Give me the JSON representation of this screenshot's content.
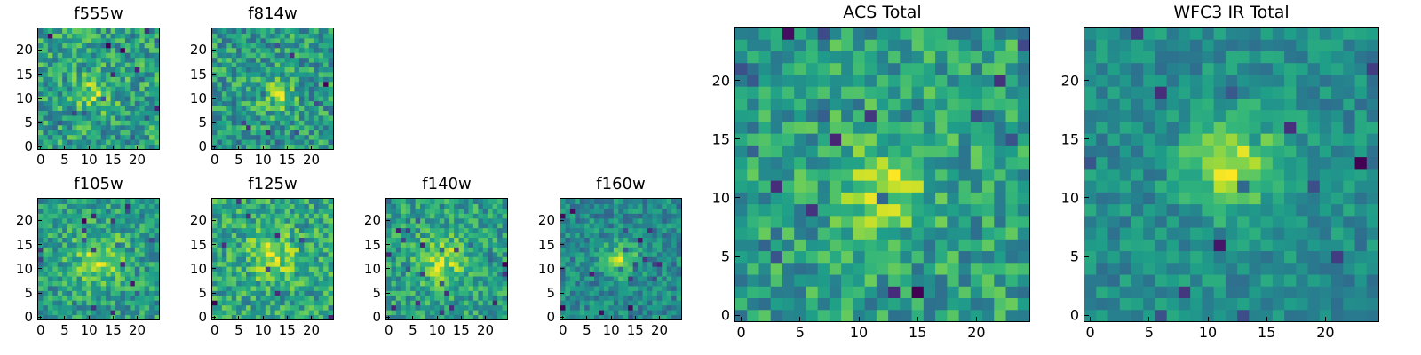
{
  "chart_data": [
    {
      "id": "f555w",
      "type": "heatmap",
      "title": "f555w",
      "grid_size": 25,
      "x_range": [
        0,
        24
      ],
      "y_range": [
        0,
        24
      ],
      "xticks": [
        0,
        5,
        10,
        15,
        20
      ],
      "yticks": [
        0,
        5,
        10,
        15,
        20
      ],
      "xtick_labels": [
        "0",
        "5",
        "10",
        "15",
        "20"
      ],
      "ytick_labels": [
        "0",
        "5",
        "10",
        "15",
        "20"
      ],
      "colormap": "viridis",
      "source": {
        "center": [
          11,
          11
        ],
        "sigma": 3.0,
        "amplitude": 0.3
      },
      "noise": 0.6,
      "seed": 11
    },
    {
      "id": "f814w",
      "type": "heatmap",
      "title": "f814w",
      "grid_size": 25,
      "x_range": [
        0,
        24
      ],
      "y_range": [
        0,
        24
      ],
      "xticks": [
        0,
        5,
        10,
        15,
        20
      ],
      "yticks": [
        0,
        5,
        10,
        15,
        20
      ],
      "xtick_labels": [
        "0",
        "5",
        "10",
        "15",
        "20"
      ],
      "ytick_labels": [
        "0",
        "5",
        "10",
        "15",
        "20"
      ],
      "colormap": "viridis",
      "source": {
        "center": [
          13,
          11
        ],
        "sigma": 2.5,
        "amplitude": 0.35
      },
      "noise": 0.6,
      "seed": 23
    },
    {
      "id": "f105w",
      "type": "heatmap",
      "title": "f105w",
      "grid_size": 25,
      "x_range": [
        0,
        24
      ],
      "y_range": [
        0,
        24
      ],
      "xticks": [
        0,
        5,
        10,
        15,
        20
      ],
      "yticks": [
        0,
        5,
        10,
        15,
        20
      ],
      "xtick_labels": [
        "0",
        "5",
        "10",
        "15",
        "20"
      ],
      "ytick_labels": [
        "0",
        "5",
        "10",
        "15",
        "20"
      ],
      "colormap": "viridis",
      "source": {
        "center": [
          12,
          12
        ],
        "sigma": 4.0,
        "amplitude": 0.3
      },
      "noise": 0.45,
      "seed": 37
    },
    {
      "id": "f125w",
      "type": "heatmap",
      "title": "f125w",
      "grid_size": 25,
      "x_range": [
        0,
        24
      ],
      "y_range": [
        0,
        24
      ],
      "xticks": [
        0,
        5,
        10,
        15,
        20
      ],
      "yticks": [
        0,
        5,
        10,
        15,
        20
      ],
      "xtick_labels": [
        "0",
        "5",
        "10",
        "15",
        "20"
      ],
      "ytick_labels": [
        "0",
        "5",
        "10",
        "15",
        "20"
      ],
      "colormap": "viridis",
      "source": {
        "center": [
          12,
          13
        ],
        "sigma": 3.5,
        "amplitude": 0.3
      },
      "noise": 0.5,
      "seed": 41
    },
    {
      "id": "f140w",
      "type": "heatmap",
      "title": "f140w",
      "grid_size": 25,
      "x_range": [
        0,
        24
      ],
      "y_range": [
        0,
        24
      ],
      "xticks": [
        0,
        5,
        10,
        15,
        20
      ],
      "yticks": [
        0,
        5,
        10,
        15,
        20
      ],
      "xtick_labels": [
        "0",
        "5",
        "10",
        "15",
        "20"
      ],
      "ytick_labels": [
        "0",
        "5",
        "10",
        "15",
        "20"
      ],
      "colormap": "viridis",
      "source": {
        "center": [
          11,
          12
        ],
        "sigma": 3.5,
        "amplitude": 0.35
      },
      "noise": 0.45,
      "seed": 53
    },
    {
      "id": "f160w",
      "type": "heatmap",
      "title": "f160w",
      "grid_size": 25,
      "x_range": [
        0,
        24
      ],
      "y_range": [
        0,
        24
      ],
      "xticks": [
        0,
        5,
        10,
        15,
        20
      ],
      "yticks": [
        0,
        5,
        10,
        15,
        20
      ],
      "xtick_labels": [
        "0",
        "5",
        "10",
        "15",
        "20"
      ],
      "ytick_labels": [
        "0",
        "5",
        "10",
        "15",
        "20"
      ],
      "colormap": "viridis",
      "source": {
        "center": [
          12,
          12
        ],
        "sigma": 2.5,
        "amplitude": 0.5
      },
      "noise": 0.45,
      "seed": 67
    },
    {
      "id": "acs-total",
      "type": "heatmap",
      "title": "ACS Total",
      "grid_size": 25,
      "x_range": [
        0,
        24
      ],
      "y_range": [
        0,
        24
      ],
      "xticks": [
        0,
        5,
        10,
        15,
        20
      ],
      "yticks": [
        0,
        5,
        10,
        15,
        20
      ],
      "xtick_labels": [
        "0",
        "5",
        "10",
        "15",
        "20"
      ],
      "ytick_labels": [
        "0",
        "5",
        "10",
        "15",
        "20"
      ],
      "colormap": "viridis",
      "source": {
        "center": [
          12,
          11
        ],
        "sigma": 2.5,
        "amplitude": 0.4
      },
      "noise": 0.5,
      "seed": 79
    },
    {
      "id": "wfc3-ir-total",
      "type": "heatmap",
      "title": "WFC3 IR Total",
      "grid_size": 25,
      "x_range": [
        0,
        24
      ],
      "y_range": [
        0,
        24
      ],
      "xticks": [
        0,
        5,
        10,
        15,
        20
      ],
      "yticks": [
        0,
        5,
        10,
        15,
        20
      ],
      "xtick_labels": [
        "0",
        "5",
        "10",
        "15",
        "20"
      ],
      "ytick_labels": [
        "0",
        "5",
        "10",
        "15",
        "20"
      ],
      "colormap": "viridis",
      "source": {
        "center": [
          12,
          13
        ],
        "sigma": 2.8,
        "amplitude": 0.55
      },
      "noise": 0.35,
      "seed": 97
    }
  ]
}
